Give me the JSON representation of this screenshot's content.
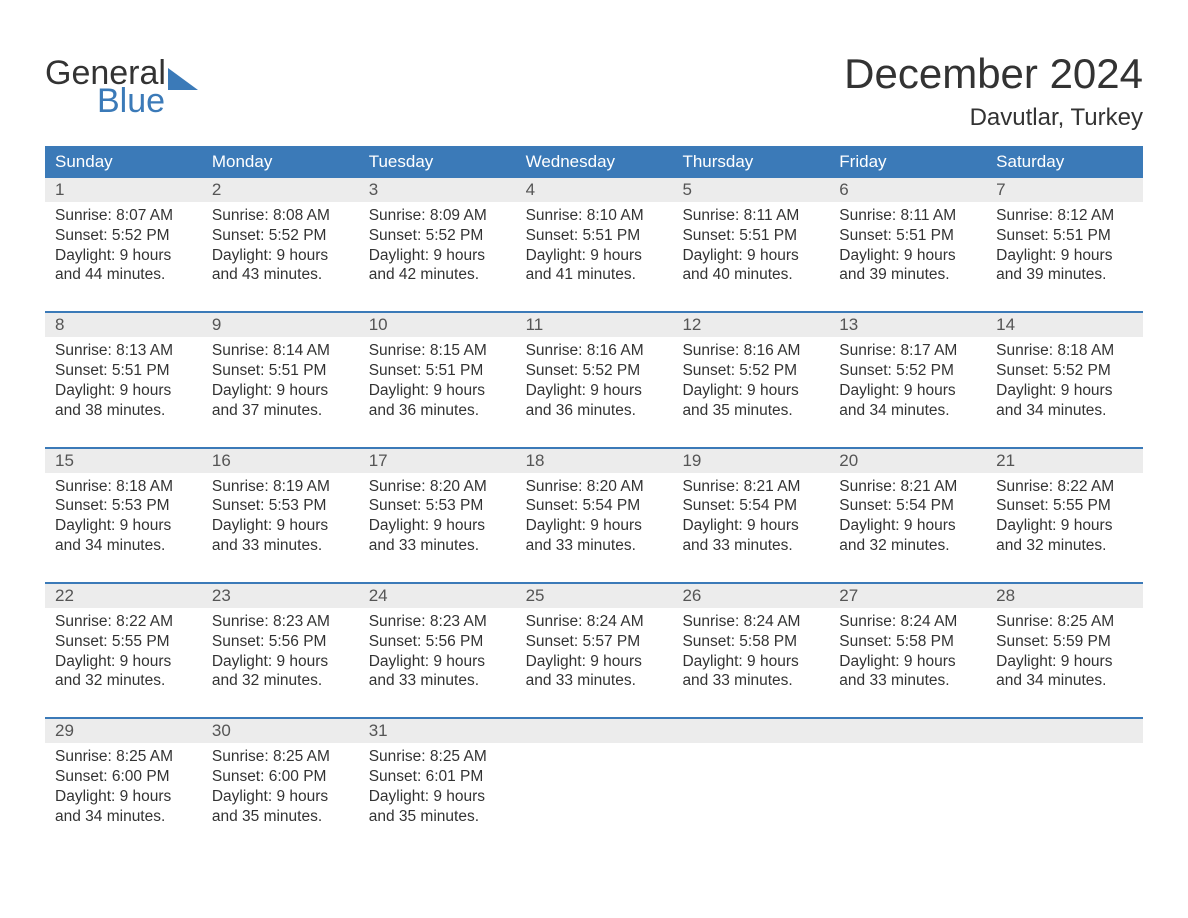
{
  "branding": {
    "line1": "General",
    "line2": "Blue",
    "brand_color": "#3b7ab8"
  },
  "title": {
    "month": "December 2024",
    "location": "Davutlar, Turkey"
  },
  "colors": {
    "header_bg": "#3b7ab8",
    "header_text": "#ffffff",
    "daynum_bg": "#ececec",
    "text": "#333333",
    "page_bg": "#ffffff"
  },
  "calendar": {
    "type": "table",
    "day_headers": [
      "Sunday",
      "Monday",
      "Tuesday",
      "Wednesday",
      "Thursday",
      "Friday",
      "Saturday"
    ],
    "weeks": [
      {
        "days": [
          {
            "num": "1",
            "sunrise": "Sunrise: 8:07 AM",
            "sunset": "Sunset: 5:52 PM",
            "daylight": "Daylight: 9 hours and 44 minutes."
          },
          {
            "num": "2",
            "sunrise": "Sunrise: 8:08 AM",
            "sunset": "Sunset: 5:52 PM",
            "daylight": "Daylight: 9 hours and 43 minutes."
          },
          {
            "num": "3",
            "sunrise": "Sunrise: 8:09 AM",
            "sunset": "Sunset: 5:52 PM",
            "daylight": "Daylight: 9 hours and 42 minutes."
          },
          {
            "num": "4",
            "sunrise": "Sunrise: 8:10 AM",
            "sunset": "Sunset: 5:51 PM",
            "daylight": "Daylight: 9 hours and 41 minutes."
          },
          {
            "num": "5",
            "sunrise": "Sunrise: 8:11 AM",
            "sunset": "Sunset: 5:51 PM",
            "daylight": "Daylight: 9 hours and 40 minutes."
          },
          {
            "num": "6",
            "sunrise": "Sunrise: 8:11 AM",
            "sunset": "Sunset: 5:51 PM",
            "daylight": "Daylight: 9 hours and 39 minutes."
          },
          {
            "num": "7",
            "sunrise": "Sunrise: 8:12 AM",
            "sunset": "Sunset: 5:51 PM",
            "daylight": "Daylight: 9 hours and 39 minutes."
          }
        ]
      },
      {
        "days": [
          {
            "num": "8",
            "sunrise": "Sunrise: 8:13 AM",
            "sunset": "Sunset: 5:51 PM",
            "daylight": "Daylight: 9 hours and 38 minutes."
          },
          {
            "num": "9",
            "sunrise": "Sunrise: 8:14 AM",
            "sunset": "Sunset: 5:51 PM",
            "daylight": "Daylight: 9 hours and 37 minutes."
          },
          {
            "num": "10",
            "sunrise": "Sunrise: 8:15 AM",
            "sunset": "Sunset: 5:51 PM",
            "daylight": "Daylight: 9 hours and 36 minutes."
          },
          {
            "num": "11",
            "sunrise": "Sunrise: 8:16 AM",
            "sunset": "Sunset: 5:52 PM",
            "daylight": "Daylight: 9 hours and 36 minutes."
          },
          {
            "num": "12",
            "sunrise": "Sunrise: 8:16 AM",
            "sunset": "Sunset: 5:52 PM",
            "daylight": "Daylight: 9 hours and 35 minutes."
          },
          {
            "num": "13",
            "sunrise": "Sunrise: 8:17 AM",
            "sunset": "Sunset: 5:52 PM",
            "daylight": "Daylight: 9 hours and 34 minutes."
          },
          {
            "num": "14",
            "sunrise": "Sunrise: 8:18 AM",
            "sunset": "Sunset: 5:52 PM",
            "daylight": "Daylight: 9 hours and 34 minutes."
          }
        ]
      },
      {
        "days": [
          {
            "num": "15",
            "sunrise": "Sunrise: 8:18 AM",
            "sunset": "Sunset: 5:53 PM",
            "daylight": "Daylight: 9 hours and 34 minutes."
          },
          {
            "num": "16",
            "sunrise": "Sunrise: 8:19 AM",
            "sunset": "Sunset: 5:53 PM",
            "daylight": "Daylight: 9 hours and 33 minutes."
          },
          {
            "num": "17",
            "sunrise": "Sunrise: 8:20 AM",
            "sunset": "Sunset: 5:53 PM",
            "daylight": "Daylight: 9 hours and 33 minutes."
          },
          {
            "num": "18",
            "sunrise": "Sunrise: 8:20 AM",
            "sunset": "Sunset: 5:54 PM",
            "daylight": "Daylight: 9 hours and 33 minutes."
          },
          {
            "num": "19",
            "sunrise": "Sunrise: 8:21 AM",
            "sunset": "Sunset: 5:54 PM",
            "daylight": "Daylight: 9 hours and 33 minutes."
          },
          {
            "num": "20",
            "sunrise": "Sunrise: 8:21 AM",
            "sunset": "Sunset: 5:54 PM",
            "daylight": "Daylight: 9 hours and 32 minutes."
          },
          {
            "num": "21",
            "sunrise": "Sunrise: 8:22 AM",
            "sunset": "Sunset: 5:55 PM",
            "daylight": "Daylight: 9 hours and 32 minutes."
          }
        ]
      },
      {
        "days": [
          {
            "num": "22",
            "sunrise": "Sunrise: 8:22 AM",
            "sunset": "Sunset: 5:55 PM",
            "daylight": "Daylight: 9 hours and 32 minutes."
          },
          {
            "num": "23",
            "sunrise": "Sunrise: 8:23 AM",
            "sunset": "Sunset: 5:56 PM",
            "daylight": "Daylight: 9 hours and 32 minutes."
          },
          {
            "num": "24",
            "sunrise": "Sunrise: 8:23 AM",
            "sunset": "Sunset: 5:56 PM",
            "daylight": "Daylight: 9 hours and 33 minutes."
          },
          {
            "num": "25",
            "sunrise": "Sunrise: 8:24 AM",
            "sunset": "Sunset: 5:57 PM",
            "daylight": "Daylight: 9 hours and 33 minutes."
          },
          {
            "num": "26",
            "sunrise": "Sunrise: 8:24 AM",
            "sunset": "Sunset: 5:58 PM",
            "daylight": "Daylight: 9 hours and 33 minutes."
          },
          {
            "num": "27",
            "sunrise": "Sunrise: 8:24 AM",
            "sunset": "Sunset: 5:58 PM",
            "daylight": "Daylight: 9 hours and 33 minutes."
          },
          {
            "num": "28",
            "sunrise": "Sunrise: 8:25 AM",
            "sunset": "Sunset: 5:59 PM",
            "daylight": "Daylight: 9 hours and 34 minutes."
          }
        ]
      },
      {
        "days": [
          {
            "num": "29",
            "sunrise": "Sunrise: 8:25 AM",
            "sunset": "Sunset: 6:00 PM",
            "daylight": "Daylight: 9 hours and 34 minutes."
          },
          {
            "num": "30",
            "sunrise": "Sunrise: 8:25 AM",
            "sunset": "Sunset: 6:00 PM",
            "daylight": "Daylight: 9 hours and 35 minutes."
          },
          {
            "num": "31",
            "sunrise": "Sunrise: 8:25 AM",
            "sunset": "Sunset: 6:01 PM",
            "daylight": "Daylight: 9 hours and 35 minutes."
          },
          {
            "num": "",
            "sunrise": "",
            "sunset": "",
            "daylight": ""
          },
          {
            "num": "",
            "sunrise": "",
            "sunset": "",
            "daylight": ""
          },
          {
            "num": "",
            "sunrise": "",
            "sunset": "",
            "daylight": ""
          },
          {
            "num": "",
            "sunrise": "",
            "sunset": "",
            "daylight": ""
          }
        ]
      }
    ]
  }
}
